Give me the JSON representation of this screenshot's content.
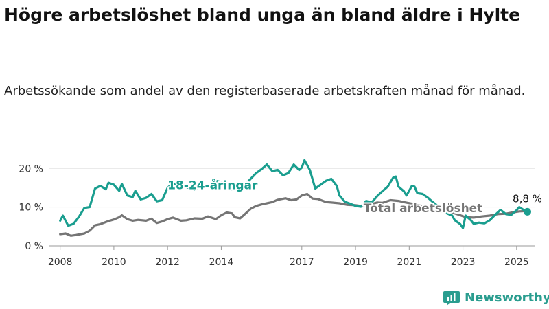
{
  "chart_data": {
    "type": "line",
    "title": "Högre arbetslöshet bland unga än bland äldre i Hylte",
    "subtitle": "Arbetssökande som andel av den registerbaserade arbetskraften månad för månad.",
    "x_tick_labels": [
      "2008",
      "2010",
      "2012",
      "2014",
      "2017",
      "2019",
      "2021",
      "2023",
      "2025"
    ],
    "x_tick_years": [
      2008.0,
      2010.0,
      2012.0,
      2014.0,
      2017.0,
      2019.0,
      2021.0,
      2023.0,
      2025.0
    ],
    "y_ticks": [
      0,
      10,
      20
    ],
    "y_tick_labels": [
      "0 %",
      "10 %",
      "20 %"
    ],
    "ylim": [
      0,
      22
    ],
    "xlim": [
      2007.6,
      2025.95
    ],
    "grid": true,
    "series": [
      {
        "name": "18-24-åringar",
        "color": "#1a9e8f",
        "points": [
          [
            2008.0,
            6.5
          ],
          [
            2008.1,
            7.8
          ],
          [
            2008.3,
            5.2
          ],
          [
            2008.5,
            5.7
          ],
          [
            2008.7,
            7.5
          ],
          [
            2008.9,
            9.8
          ],
          [
            2009.1,
            10.0
          ],
          [
            2009.3,
            14.8
          ],
          [
            2009.5,
            15.5
          ],
          [
            2009.7,
            14.6
          ],
          [
            2009.8,
            16.3
          ],
          [
            2010.0,
            15.8
          ],
          [
            2010.2,
            14.2
          ],
          [
            2010.3,
            16.0
          ],
          [
            2010.5,
            13.0
          ],
          [
            2010.7,
            12.6
          ],
          [
            2010.8,
            14.2
          ],
          [
            2011.0,
            12.0
          ],
          [
            2011.2,
            12.4
          ],
          [
            2011.4,
            13.4
          ],
          [
            2011.6,
            11.5
          ],
          [
            2011.8,
            11.8
          ],
          [
            2012.0,
            15.0
          ],
          [
            2012.2,
            16.2
          ],
          [
            2012.4,
            15.6
          ],
          [
            2012.7,
            15.2
          ],
          [
            2013.0,
            14.5
          ],
          [
            2013.3,
            15.8
          ],
          [
            2013.6,
            15.3
          ],
          [
            2013.8,
            16.8
          ],
          [
            2014.1,
            16.3
          ],
          [
            2014.4,
            14.6
          ],
          [
            2014.7,
            15.0
          ],
          [
            2015.0,
            16.6
          ],
          [
            2015.3,
            18.8
          ],
          [
            2015.5,
            19.8
          ],
          [
            2015.7,
            21.0
          ],
          [
            2015.9,
            19.3
          ],
          [
            2016.1,
            19.6
          ],
          [
            2016.3,
            18.2
          ],
          [
            2016.5,
            18.8
          ],
          [
            2016.7,
            21.0
          ],
          [
            2016.9,
            19.6
          ],
          [
            2017.0,
            20.2
          ],
          [
            2017.1,
            22.1
          ],
          [
            2017.3,
            19.6
          ],
          [
            2017.5,
            14.8
          ],
          [
            2017.7,
            15.8
          ],
          [
            2017.9,
            16.8
          ],
          [
            2018.1,
            17.3
          ],
          [
            2018.3,
            15.5
          ],
          [
            2018.4,
            13.0
          ],
          [
            2018.6,
            11.4
          ],
          [
            2018.8,
            10.9
          ],
          [
            2019.0,
            10.3
          ],
          [
            2019.2,
            10.1
          ],
          [
            2019.4,
            11.6
          ],
          [
            2019.6,
            11.2
          ],
          [
            2019.8,
            12.8
          ],
          [
            2020.0,
            14.1
          ],
          [
            2020.2,
            15.3
          ],
          [
            2020.4,
            17.6
          ],
          [
            2020.5,
            17.9
          ],
          [
            2020.6,
            15.3
          ],
          [
            2020.8,
            14.1
          ],
          [
            2020.9,
            13.0
          ],
          [
            2021.1,
            15.5
          ],
          [
            2021.2,
            15.3
          ],
          [
            2021.3,
            13.6
          ],
          [
            2021.5,
            13.4
          ],
          [
            2021.7,
            12.4
          ],
          [
            2021.9,
            11.2
          ],
          [
            2022.1,
            10.1
          ],
          [
            2022.2,
            9.0
          ],
          [
            2022.4,
            8.4
          ],
          [
            2022.6,
            7.8
          ],
          [
            2022.7,
            6.6
          ],
          [
            2022.9,
            5.6
          ],
          [
            2023.0,
            4.6
          ],
          [
            2023.1,
            7.8
          ],
          [
            2023.3,
            6.6
          ],
          [
            2023.4,
            5.7
          ],
          [
            2023.6,
            6.0
          ],
          [
            2023.8,
            5.8
          ],
          [
            2024.0,
            6.6
          ],
          [
            2024.2,
            8.0
          ],
          [
            2024.4,
            9.3
          ],
          [
            2024.6,
            8.2
          ],
          [
            2024.8,
            8.0
          ],
          [
            2025.0,
            9.2
          ],
          [
            2025.1,
            10.0
          ],
          [
            2025.3,
            9.1
          ],
          [
            2025.4,
            8.8
          ]
        ],
        "label": "18-24-åringar",
        "label_anchor": [
          2012.0,
          14.6
        ]
      },
      {
        "name": "Total arbetslöshet",
        "color": "#757575",
        "points": [
          [
            2008.0,
            3.0
          ],
          [
            2008.2,
            3.2
          ],
          [
            2008.4,
            2.6
          ],
          [
            2008.6,
            2.8
          ],
          [
            2008.9,
            3.2
          ],
          [
            2009.1,
            3.9
          ],
          [
            2009.3,
            5.3
          ],
          [
            2009.5,
            5.6
          ],
          [
            2009.8,
            6.4
          ],
          [
            2010.0,
            6.8
          ],
          [
            2010.2,
            7.4
          ],
          [
            2010.3,
            7.9
          ],
          [
            2010.5,
            6.9
          ],
          [
            2010.7,
            6.5
          ],
          [
            2010.9,
            6.7
          ],
          [
            2011.2,
            6.5
          ],
          [
            2011.4,
            7.0
          ],
          [
            2011.6,
            5.9
          ],
          [
            2011.8,
            6.3
          ],
          [
            2012.0,
            6.9
          ],
          [
            2012.2,
            7.3
          ],
          [
            2012.5,
            6.5
          ],
          [
            2012.7,
            6.6
          ],
          [
            2013.0,
            7.1
          ],
          [
            2013.3,
            7.0
          ],
          [
            2013.5,
            7.6
          ],
          [
            2013.8,
            6.9
          ],
          [
            2014.0,
            7.9
          ],
          [
            2014.2,
            8.6
          ],
          [
            2014.4,
            8.4
          ],
          [
            2014.5,
            7.4
          ],
          [
            2014.7,
            7.1
          ],
          [
            2014.9,
            8.3
          ],
          [
            2015.1,
            9.6
          ],
          [
            2015.3,
            10.3
          ],
          [
            2015.5,
            10.7
          ],
          [
            2015.7,
            11.0
          ],
          [
            2015.9,
            11.3
          ],
          [
            2016.1,
            11.9
          ],
          [
            2016.4,
            12.3
          ],
          [
            2016.6,
            11.8
          ],
          [
            2016.8,
            12.0
          ],
          [
            2017.0,
            13.0
          ],
          [
            2017.2,
            13.4
          ],
          [
            2017.4,
            12.2
          ],
          [
            2017.6,
            12.1
          ],
          [
            2017.9,
            11.3
          ],
          [
            2018.1,
            11.2
          ],
          [
            2018.4,
            11.0
          ],
          [
            2018.7,
            10.6
          ],
          [
            2019.0,
            10.5
          ],
          [
            2019.2,
            10.3
          ],
          [
            2019.5,
            10.6
          ],
          [
            2019.8,
            11.2
          ],
          [
            2020.0,
            11.1
          ],
          [
            2020.3,
            11.8
          ],
          [
            2020.6,
            11.6
          ],
          [
            2020.8,
            11.3
          ],
          [
            2021.1,
            10.9
          ],
          [
            2021.4,
            10.4
          ],
          [
            2021.7,
            9.6
          ],
          [
            2022.0,
            9.1
          ],
          [
            2022.3,
            8.7
          ],
          [
            2022.6,
            8.6
          ],
          [
            2022.9,
            7.9
          ],
          [
            2023.1,
            7.4
          ],
          [
            2023.4,
            7.3
          ],
          [
            2023.7,
            7.6
          ],
          [
            2024.0,
            7.8
          ],
          [
            2024.3,
            8.2
          ],
          [
            2024.6,
            8.3
          ],
          [
            2024.9,
            8.7
          ],
          [
            2025.1,
            8.9
          ],
          [
            2025.4,
            9.0
          ]
        ],
        "label": "Total arbetslöshet",
        "label_anchor": [
          2019.3,
          8.7
        ]
      }
    ],
    "end_label": {
      "text": "8,8 %",
      "value": [
        2025.4,
        8.8
      ]
    }
  },
  "brand": {
    "name": "Newsworthy",
    "icon": "newsworthy-logo-icon",
    "color": "#2a9d8f"
  }
}
